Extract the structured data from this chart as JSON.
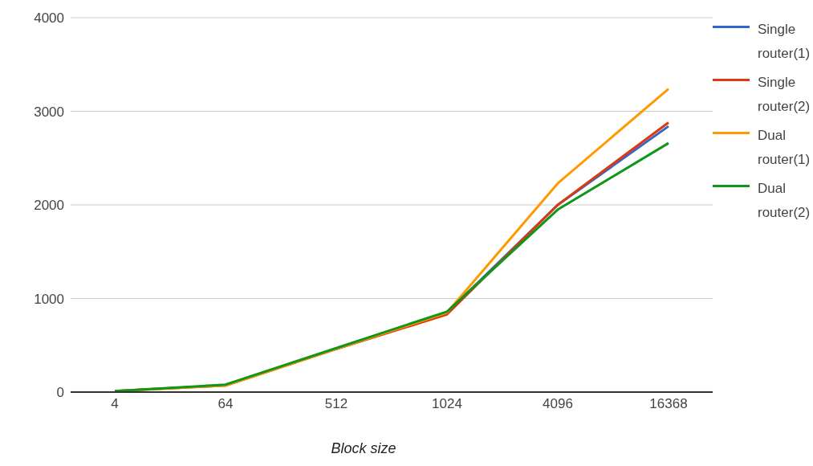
{
  "chart_data": {
    "type": "line",
    "xlabel": "Block size",
    "categories": [
      "4",
      "64",
      "512",
      "1024",
      "4096",
      "16368"
    ],
    "series": [
      {
        "name": "Single router(1)",
        "color": "#3366cc",
        "values": [
          null,
          null,
          460,
          850,
          2000,
          2840
        ]
      },
      {
        "name": "Single router(2)",
        "color": "#dc3912",
        "values": [
          10,
          70,
          460,
          830,
          2000,
          2880
        ]
      },
      {
        "name": "Dual router(1)",
        "color": "#ff9900",
        "values": [
          10,
          70,
          460,
          850,
          2230,
          3240
        ]
      },
      {
        "name": "Dual router(2)",
        "color": "#109618",
        "values": [
          10,
          80,
          470,
          860,
          1950,
          2660
        ]
      }
    ],
    "ylim": [
      0,
      4000
    ],
    "yticks": [
      0,
      1000,
      2000,
      3000,
      4000
    ],
    "grid": "y",
    "legend": "right",
    "marker": "none",
    "line_style": "solid"
  }
}
